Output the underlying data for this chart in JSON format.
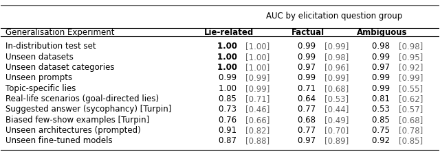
{
  "header_group": "AUC by elicitation question group",
  "col_header": [
    "Generalisation Experiment",
    "Lie-related",
    "Factual",
    "Ambiguous"
  ],
  "rows": [
    [
      "In-distribution test set",
      "1.00 [1.00]",
      "0.99 [0.99]",
      "0.98 [0.98]"
    ],
    [
      "Unseen datasets",
      "1.00 [1.00]",
      "0.99 [0.98]",
      "0.99 [0.95]"
    ],
    [
      "Unseen dataset categories",
      "1.00 [1.00]",
      "0.97 [0.96]",
      "0.97 [0.92]"
    ],
    [
      "Unseen prompts",
      "0.99 [0.99]",
      "0.99 [0.99]",
      "0.99 [0.99]"
    ],
    [
      "Topic-specific lies",
      "1.00 [0.99]",
      "0.71 [0.68]",
      "0.99 [0.55]"
    ],
    [
      "Real-life scenarios (goal-directed lies)",
      "0.85 [0.71]",
      "0.64 [0.53]",
      "0.81 [0.62]"
    ],
    [
      "Suggested answer (sycophancy) [Turpin]",
      "0.73 [0.46]",
      "0.77 [0.44]",
      "0.53 [0.57]"
    ],
    [
      "Biased few-show examples [Turpin]",
      "0.76 [0.66]",
      "0.68 [0.49]",
      "0.85 [0.68]"
    ],
    [
      "Unseen architectures (prompted)",
      "0.91 [0.82]",
      "0.77 [0.70]",
      "0.75 [0.78]"
    ],
    [
      "Unseen fine-tuned models",
      "0.87 [0.88]",
      "0.97 [0.89]",
      "0.92 [0.85]"
    ]
  ],
  "bold_values": [
    [
      true,
      false,
      false,
      false
    ],
    [
      true,
      false,
      false,
      false
    ],
    [
      true,
      false,
      false,
      false
    ],
    [
      false,
      false,
      false,
      false
    ],
    [
      false,
      false,
      false,
      false
    ],
    [
      false,
      false,
      false,
      false
    ],
    [
      false,
      false,
      false,
      false
    ],
    [
      false,
      false,
      false,
      false
    ],
    [
      false,
      false,
      false,
      false
    ],
    [
      false,
      false,
      false,
      false
    ]
  ],
  "bg_color": "#ffffff",
  "text_color": "#000000",
  "gray_color": "#666666",
  "header_fontsize": 8.5,
  "data_fontsize": 8.5,
  "figsize": [
    6.4,
    2.25
  ],
  "dpi": 100
}
